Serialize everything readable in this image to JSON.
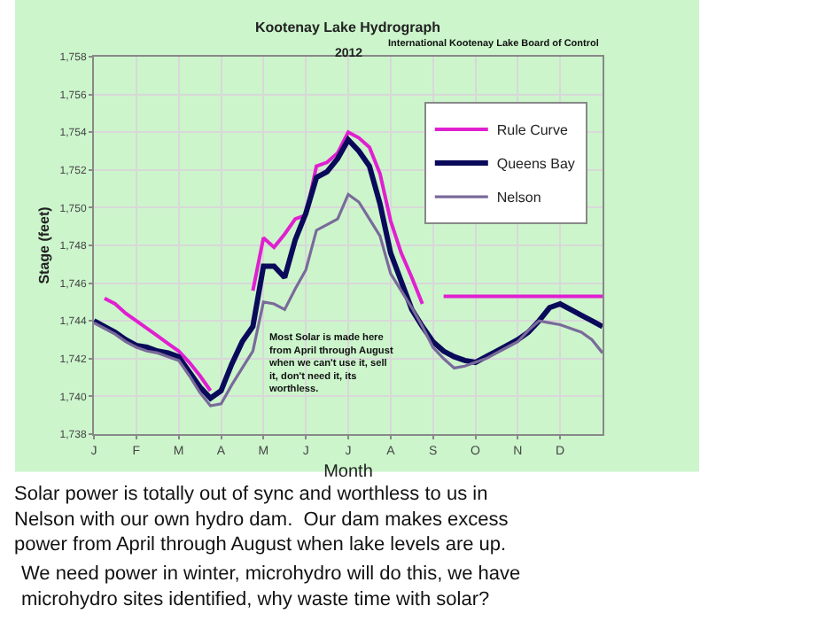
{
  "chart_data": {
    "type": "line",
    "title": "Kootenay Lake Hydrograph",
    "subtitle": "2012",
    "xlabel": "Month",
    "ylabel": "Stage (feet)",
    "categories": [
      "J",
      null,
      null,
      null,
      "F",
      null,
      null,
      null,
      "M",
      null,
      null,
      null,
      "A",
      null,
      null,
      null,
      "M",
      null,
      null,
      null,
      "J",
      null,
      null,
      null,
      "J",
      null,
      null,
      null,
      "A",
      null,
      null,
      null,
      "S",
      null,
      null,
      null,
      "O",
      null,
      null,
      null,
      "N",
      null,
      null,
      null,
      "D",
      null,
      null,
      null,
      null
    ],
    "ylim": [
      1738,
      1758
    ],
    "yticks": [
      {
        "value": 1738,
        "label": "1,738"
      },
      {
        "value": 1740,
        "label": "1,740"
      },
      {
        "value": 1742,
        "label": "1,742"
      },
      {
        "value": 1744,
        "label": "1,744"
      },
      {
        "value": 1746,
        "label": "1,746"
      },
      {
        "value": 1748,
        "label": "1,748"
      },
      {
        "value": 1750,
        "label": "1,750"
      },
      {
        "value": 1752,
        "label": "1,752"
      },
      {
        "value": 1754,
        "label": "1,754"
      },
      {
        "value": 1756,
        "label": "1,756"
      },
      {
        "value": 1758,
        "label": "1,758"
      }
    ],
    "grid": true,
    "legend": "top right",
    "series": [
      {
        "name": "Rule Curve",
        "color": "#e020d0",
        "values": [
          null,
          1745.2,
          1744.9,
          1744.4,
          1744.0,
          1743.6,
          1743.2,
          1742.8,
          1742.4,
          1741.8,
          1741.1,
          1740.3,
          null,
          null,
          null,
          1745.6,
          1748.4,
          1747.9,
          1748.6,
          1749.4,
          1749.6,
          1752.2,
          1752.4,
          1752.9,
          1754.0,
          1753.7,
          1753.2,
          1751.8,
          1749.3,
          1747.6,
          1746.3,
          1744.9,
          null,
          1745.3,
          1745.3,
          1745.3,
          1745.3,
          1745.3,
          1745.3,
          1745.3,
          1745.3,
          1745.3,
          1745.3,
          1745.3,
          1745.3,
          1745.3,
          1745.3,
          1745.3,
          1745.3
        ]
      },
      {
        "name": "Queens Bay",
        "color": "#0a0a5a",
        "values": [
          1744.0,
          1743.7,
          1743.4,
          1743.0,
          1742.7,
          1742.6,
          1742.4,
          1742.3,
          1742.1,
          1741.3,
          1740.5,
          1739.9,
          1740.3,
          1741.7,
          1742.9,
          1743.7,
          1746.9,
          1746.9,
          1746.3,
          1748.3,
          1749.7,
          1751.6,
          1751.9,
          1752.6,
          1753.6,
          1753.0,
          1752.2,
          1750.2,
          1747.6,
          1746.1,
          1744.6,
          1743.7,
          1742.9,
          1742.4,
          1742.1,
          1741.9,
          1741.8,
          1742.1,
          1742.4,
          1742.7,
          1743.0,
          1743.4,
          1744.0,
          1744.7,
          1744.9,
          1744.6,
          1744.3,
          1744.0,
          1743.7
        ]
      },
      {
        "name": "Nelson",
        "color": "#7a6a9a",
        "values": [
          1743.9,
          1743.6,
          1743.3,
          1742.9,
          1742.6,
          1742.4,
          1742.3,
          1742.1,
          1741.9,
          1741.1,
          1740.2,
          1739.5,
          1739.6,
          1740.6,
          1741.5,
          1742.4,
          1745.0,
          1744.9,
          1744.6,
          1745.7,
          1746.7,
          1748.8,
          1749.1,
          1749.4,
          1750.7,
          1750.3,
          1749.4,
          1748.5,
          1746.5,
          1745.6,
          1744.7,
          1743.7,
          1742.6,
          1742.0,
          1741.5,
          1741.6,
          1741.8,
          1742.0,
          1742.3,
          1742.6,
          1742.9,
          1743.5,
          1744.0,
          1743.9,
          1743.8,
          1743.6,
          1743.4,
          1743.0,
          1742.3
        ]
      }
    ],
    "annotations": [
      "International Kootenay Lake Board of Control",
      "Most Solar is made here\nfrom April through August\nwhen we can't use it, sell\nit, don't need it, its\nworthless.",
      "Solar power is totally out of sync and worthless to us in\nNelson with our own hydro dam.  Our dam makes excess\npower from April through August when lake levels are up.",
      "We need power in winter, microhydro will do this, we have\nmicrohydro sites identified, why waste time with solar?"
    ]
  }
}
